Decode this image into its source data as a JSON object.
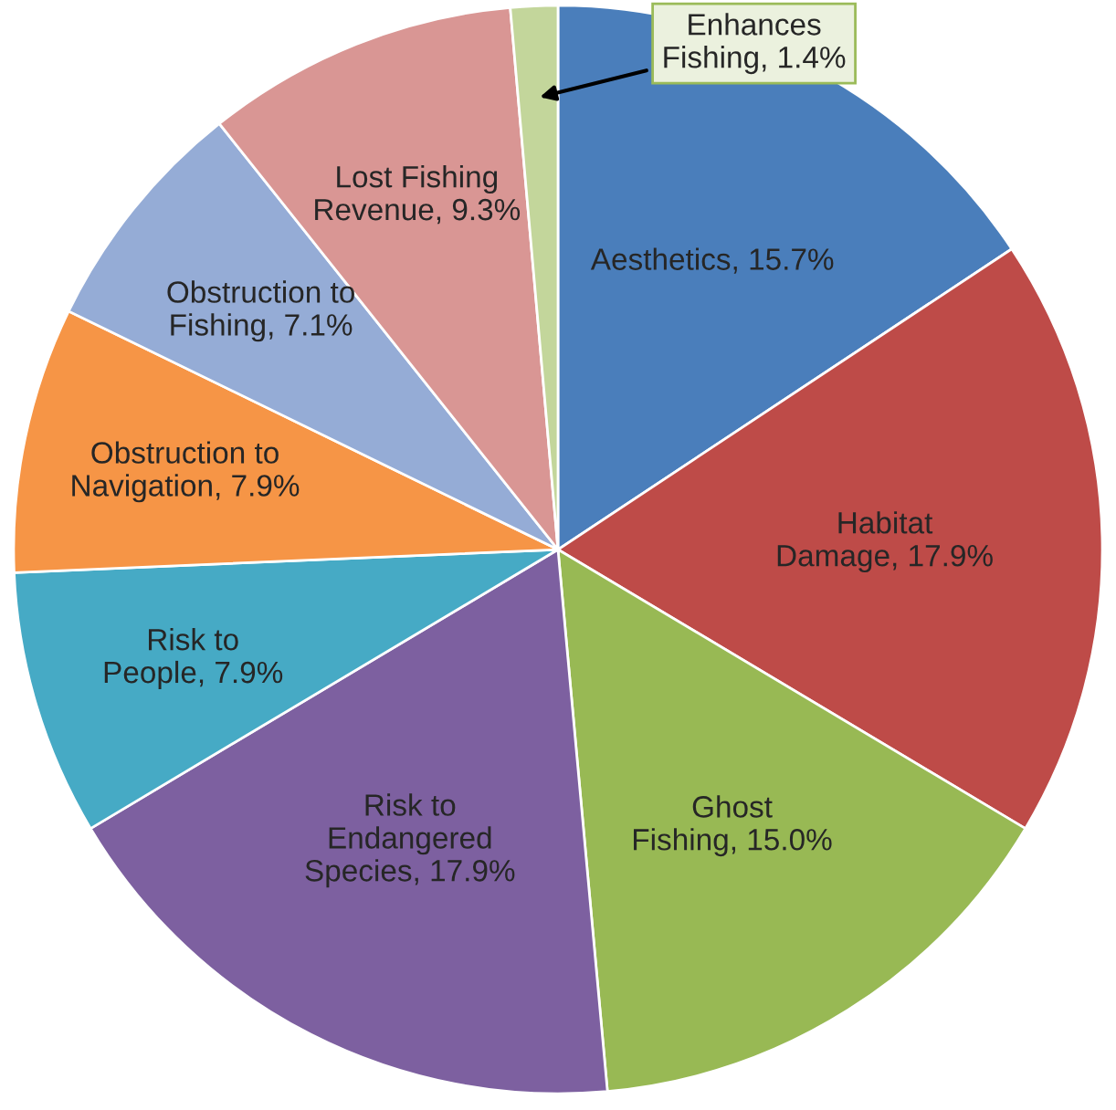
{
  "chart_data": {
    "type": "pie",
    "categories": [
      "Aesthetics",
      "Habitat\nDamage",
      "Ghost\nFishing",
      "Risk to\nEndangered\nSpecies",
      "Risk to\nPeople",
      "Obstruction to\nNavigation",
      "Obstruction to\nFishing",
      "Lost Fishing\nRevenue",
      "Enhances\nFishing"
    ],
    "values": [
      15.7,
      17.9,
      15.0,
      17.9,
      7.9,
      7.9,
      7.1,
      9.3,
      1.4
    ],
    "value_labels": [
      "15.7%",
      "17.9%",
      "15.0%",
      "17.9%",
      "7.9%",
      "7.9%",
      "7.1%",
      "9.3%",
      "1.4%"
    ],
    "colors": [
      "#4a7ebb",
      "#be4b48",
      "#98b954",
      "#7d60a0",
      "#46aac5",
      "#f69546",
      "#95acd6",
      "#d99694",
      "#c3d69b"
    ]
  }
}
